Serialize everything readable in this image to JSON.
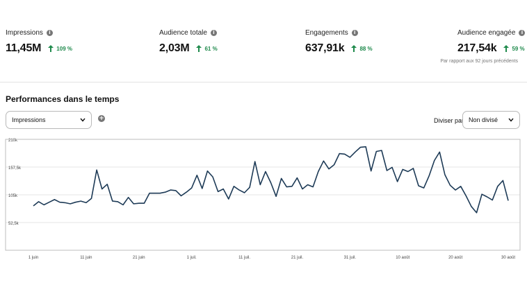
{
  "kpis": [
    {
      "label": "Impressions",
      "value": "11,45M",
      "change": "109 %"
    },
    {
      "label": "Audience totale",
      "value": "2,03M",
      "change": "61 %"
    },
    {
      "label": "Engagements",
      "value": "637,91k",
      "change": "88 %"
    },
    {
      "label": "Audience engagée",
      "value": "217,54k",
      "change": "59 %"
    }
  ],
  "compare_note": "Par rapport aux 92 jours précédents",
  "colors": {
    "positive": "#1f8a4c",
    "line": "#1d3a56",
    "grid": "#e6e6e6"
  },
  "performance": {
    "title": "Performances dans le temps",
    "metric_select": {
      "value": "Impressions"
    },
    "split": {
      "label": "Diviser par",
      "value": "Non divisé"
    }
  },
  "chart_data": {
    "type": "line",
    "ylim": [
      0,
      210000
    ],
    "y_tick_values": [
      52500,
      105000,
      157500,
      210000
    ],
    "y_tick_labels": [
      "52,5k",
      "105k",
      "157,5k",
      "210k"
    ],
    "x_tick_labels": [
      "1 juin",
      "11 juin",
      "21 juin",
      "1 juil.",
      "11 juil.",
      "21 juil.",
      "31 juil.",
      "10 août",
      "20 août",
      "30 août"
    ],
    "x_tick_indices": [
      0,
      10,
      20,
      30,
      40,
      50,
      60,
      70,
      80,
      90
    ],
    "grid": true,
    "series": [
      {
        "values": [
          84000,
          92000,
          86000,
          91000,
          96000,
          91000,
          90000,
          88000,
          91000,
          93000,
          90000,
          98000,
          152000,
          116000,
          125000,
          93000,
          92000,
          86000,
          100000,
          88000,
          89000,
          89000,
          108000,
          108000,
          108000,
          110000,
          114000,
          113000,
          103000,
          110000,
          118000,
          142000,
          117000,
          150000,
          139000,
          111000,
          116000,
          97000,
          121000,
          114000,
          109000,
          119000,
          168000,
          124000,
          149000,
          128000,
          102000,
          136000,
          120000,
          121000,
          137000,
          116000,
          124000,
          120000,
          149000,
          169000,
          154000,
          162000,
          183000,
          182000,
          176000,
          186000,
          195000,
          196000,
          150000,
          187000,
          189000,
          151000,
          157000,
          130000,
          153000,
          149000,
          155000,
          122000,
          118000,
          141000,
          170000,
          186000,
          143000,
          123000,
          114000,
          121000,
          103000,
          83000,
          71000,
          106000,
          101000,
          95000,
          121000,
          132000,
          94000
        ]
      }
    ]
  }
}
